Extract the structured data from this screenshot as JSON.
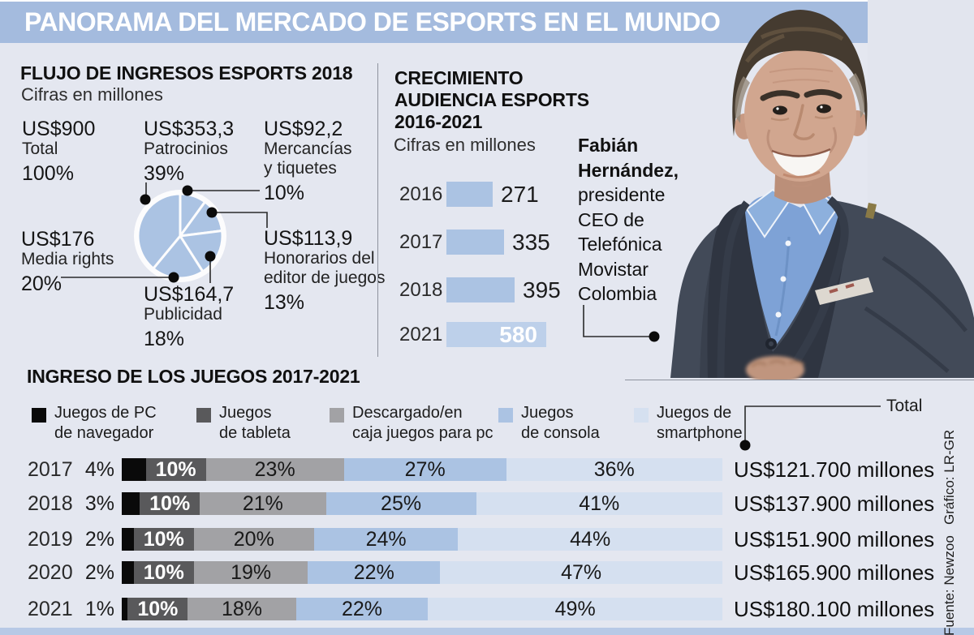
{
  "header": {
    "title": "PANORAMA DEL MERCADO DE ESPORTS EN EL MUNDO"
  },
  "colors": {
    "bg": "#e4e7f0",
    "band": "#a4bbde",
    "blue": "#abc3e3",
    "lightblue": "#d5e0f0",
    "hl": "#bdd0ea",
    "gray_dark": "#59595b",
    "gray_mid": "#a2a2a5",
    "black": "#0a0a0a",
    "strip": "#b7c9e6",
    "ink": "#1b1b1b",
    "line": "#8e939e"
  },
  "chart_data": [
    {
      "id": "flujo_ingresos",
      "type": "pie",
      "title": "FLUJO DE INGRESOS ESPORTS 2018",
      "subtitle": "Cifras en millones",
      "total": {
        "value": "US$900",
        "label": "Total",
        "pct": 100,
        "pct_label": "100%"
      },
      "slices": [
        {
          "label": "Mercancías y tiquetes",
          "label_lines": [
            "Mercancías",
            "y tiquetes"
          ],
          "value": "US$92,2",
          "pct": 10,
          "pct_label": "10%"
        },
        {
          "label": "Honorarios del editor de juegos",
          "label_lines": [
            "Honorarios del",
            "editor de juegos"
          ],
          "value": "US$113,9",
          "pct": 13,
          "pct_label": "13%"
        },
        {
          "label": "Publicidad",
          "label_lines": [
            "Publicidad"
          ],
          "value": "US$164,7",
          "pct": 18,
          "pct_label": "18%"
        },
        {
          "label": "Media rights",
          "label_lines": [
            "Media rights"
          ],
          "value": "US$176",
          "pct": 20,
          "pct_label": "20%"
        },
        {
          "label": "Patrocinios",
          "label_lines": [
            "Patrocinios"
          ],
          "value": "US$353,3",
          "pct": 39,
          "pct_label": "39%"
        }
      ]
    },
    {
      "id": "crecimiento_audiencia",
      "type": "bar",
      "title_lines": [
        "CRECIMIENTO",
        "AUDIENCIA ESPORTS",
        "2016-2021"
      ],
      "subtitle": "Cifras en millones",
      "categories": [
        "2016",
        "2017",
        "2018",
        "2021"
      ],
      "values": [
        271,
        335,
        395,
        580
      ],
      "xmax": 580,
      "highlight_index": 3
    },
    {
      "id": "ingreso_juegos",
      "type": "stacked-bar",
      "title": "INGRESO DE LOS JUEGOS 2017-2021",
      "total_label": "Total",
      "legend": [
        {
          "lines": [
            "Juegos de PC",
            "de navegador"
          ],
          "color_key": "black"
        },
        {
          "lines": [
            "Juegos",
            "de tableta"
          ],
          "color_key": "gray_dark"
        },
        {
          "lines": [
            "Descargado/en",
            "caja juegos para pc"
          ],
          "color_key": "gray_mid"
        },
        {
          "lines": [
            "Juegos",
            "de consola"
          ],
          "color_key": "blue"
        },
        {
          "lines": [
            "Juegos de",
            "smartphone"
          ],
          "color_key": "lightblue"
        }
      ],
      "series": [
        "Juegos de PC de navegador",
        "Juegos de tableta",
        "Descargado/en caja juegos para pc",
        "Juegos de consola",
        "Juegos de smartphone"
      ],
      "rows": [
        {
          "year": "2017",
          "values": [
            4,
            10,
            23,
            27,
            36
          ],
          "labels": [
            "4%",
            "10%",
            "23%",
            "27%",
            "36%"
          ],
          "total": "US$121.700 millones"
        },
        {
          "year": "2018",
          "values": [
            3,
            10,
            21,
            25,
            41
          ],
          "labels": [
            "3%",
            "10%",
            "21%",
            "25%",
            "41%"
          ],
          "total": "US$137.900 millones"
        },
        {
          "year": "2019",
          "values": [
            2,
            10,
            20,
            24,
            44
          ],
          "labels": [
            "2%",
            "10%",
            "20%",
            "24%",
            "44%"
          ],
          "total": "US$151.900 millones"
        },
        {
          "year": "2020",
          "values": [
            2,
            10,
            19,
            22,
            47
          ],
          "labels": [
            "2%",
            "10%",
            "19%",
            "22%",
            "47%"
          ],
          "total": "US$165.900 millones"
        },
        {
          "year": "2021",
          "values": [
            1,
            10,
            18,
            22,
            49
          ],
          "labels": [
            "1%",
            "10%",
            "18%",
            "22%",
            "49%"
          ],
          "total": "US$180.100 millones"
        }
      ]
    }
  ],
  "fabian": {
    "lines": [
      "Fabián",
      "Hernández,",
      "presidente",
      "CEO de",
      "Telefónica",
      "Movistar",
      "Colombia"
    ],
    "bold_count": 2
  },
  "credits": {
    "grafico": "Gráfico: LR-GR",
    "fuente": "Fuente: Newzoo"
  }
}
